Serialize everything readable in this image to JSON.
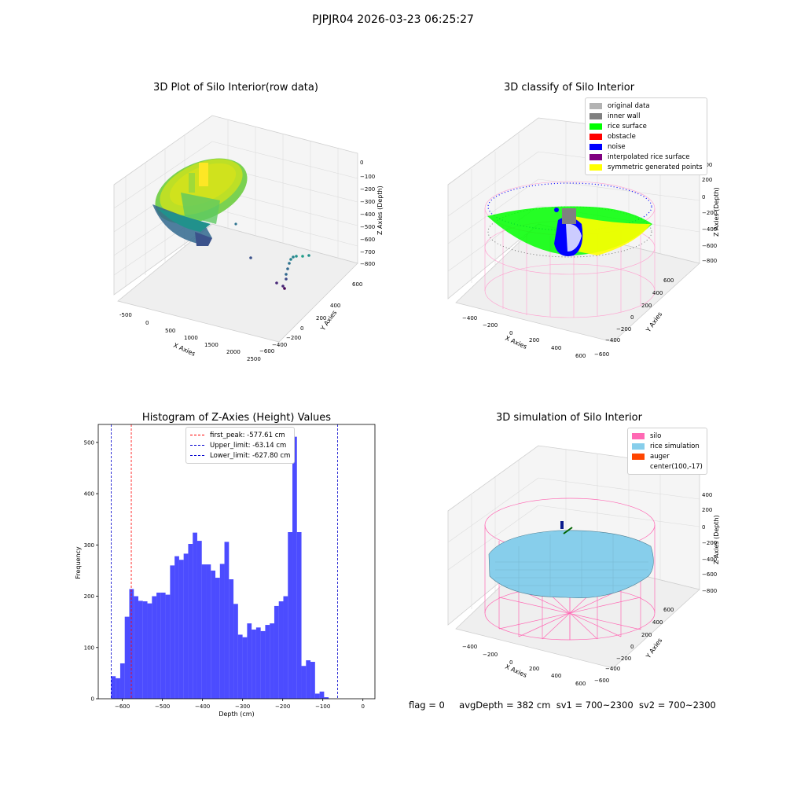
{
  "suptitle": "PJPJR04 2026-03-23 06:25:27",
  "status": {
    "flag": "flag = 0",
    "avg_depth": "avgDepth = 382 cm",
    "sv1": "sv1 = 700~2300",
    "sv2": "sv2 = 700~2300"
  },
  "panel_tl": {
    "title": "3D Plot of Silo Interior(row data)",
    "xlabel": "X Axies",
    "ylabel": "Y Axies",
    "zlabel": "Z Axies (Depth)",
    "xticks": [
      "-500",
      "0",
      "500",
      "1000",
      "1500",
      "2000",
      "2500"
    ],
    "yticks": [
      "600",
      "400",
      "200",
      "0",
      "−200",
      "−400",
      "−600"
    ],
    "zticks": [
      "0",
      "−100",
      "−200",
      "−300",
      "−400",
      "−500",
      "−600",
      "−700",
      "−800"
    ],
    "colormap": [
      "#440154",
      "#31688e",
      "#35b779",
      "#fde725"
    ]
  },
  "panel_tr": {
    "title": "3D classify of Silo Interior",
    "xlabel": "X Axies",
    "ylabel": "Y Axies",
    "zlabel": "Z Axies (Depth)",
    "xticks": [
      "−400",
      "−200",
      "0",
      "200",
      "400",
      "600"
    ],
    "yticks": [
      "600",
      "400",
      "200",
      "0",
      "−200",
      "−400",
      "−600"
    ],
    "zticks": [
      "400",
      "200",
      "0",
      "−200",
      "−400",
      "−600",
      "−800"
    ],
    "legend": [
      {
        "label": "original data",
        "color": "#b3b3b3"
      },
      {
        "label": "inner wall",
        "color": "#808080"
      },
      {
        "label": "rice surface",
        "color": "#00ff00"
      },
      {
        "label": "obstacle",
        "color": "#ff0000"
      },
      {
        "label": "noise",
        "color": "#0000ff"
      },
      {
        "label": "interpolated rice surface",
        "color": "#800080"
      },
      {
        "label": "symmetric generated points",
        "color": "#ffff00"
      }
    ]
  },
  "panel_br": {
    "title": "3D simulation of Silo Interior",
    "xlabel": "X Axies",
    "ylabel": "Y Axies",
    "zlabel": "Z Axies (Depth)",
    "xticks": [
      "−400",
      "−200",
      "0",
      "200",
      "400",
      "600"
    ],
    "yticks": [
      "600",
      "400",
      "200",
      "0",
      "−200",
      "−400",
      "−600"
    ],
    "zticks": [
      "400",
      "200",
      "0",
      "−200",
      "−400",
      "−600",
      "−800"
    ],
    "legend": [
      {
        "label": "silo",
        "color": "#ff69b4"
      },
      {
        "label": "rice simulation",
        "color": "#87ceeb"
      },
      {
        "label": "auger",
        "color": "#ff4500"
      },
      {
        "label": "center(100,-17)",
        "color": ""
      }
    ]
  },
  "chart_data": {
    "type": "bar",
    "title": "Histogram of Z-Axies (Height) Values",
    "xlabel": "Depth (cm)",
    "ylabel": "Frequency",
    "xlim": [
      -660,
      30
    ],
    "ylim": [
      0,
      535
    ],
    "xticks": [
      -600,
      -500,
      -400,
      -300,
      -200,
      -100,
      0
    ],
    "xtick_labels": [
      "−600",
      "−500",
      "−400",
      "−300",
      "−200",
      "−100",
      "0"
    ],
    "yticks": [
      0,
      100,
      200,
      300,
      400,
      500
    ],
    "bar_color": "#0000ff",
    "bin_start": -627.8,
    "bin_width": 11.3,
    "values": [
      44,
      40,
      69,
      160,
      214,
      200,
      191,
      190,
      186,
      200,
      207,
      207,
      203,
      260,
      278,
      271,
      283,
      302,
      324,
      308,
      262,
      262,
      250,
      236,
      263,
      306,
      233,
      185,
      125,
      120,
      147,
      135,
      139,
      132,
      144,
      147,
      181,
      190,
      200,
      325,
      511,
      325,
      64,
      75,
      72,
      10,
      14,
      3
    ],
    "vlines": [
      {
        "x": -577.61,
        "color": "#ff0000",
        "label": "first_peak: -577.61 cm"
      },
      {
        "x": -63.14,
        "color": "#0000cd",
        "label": "Upper_limit: -63.14 cm"
      },
      {
        "x": -627.8,
        "color": "#0000cd",
        "label": "Lower_limit: -627.80 cm"
      }
    ],
    "legend_position": "upper center"
  }
}
